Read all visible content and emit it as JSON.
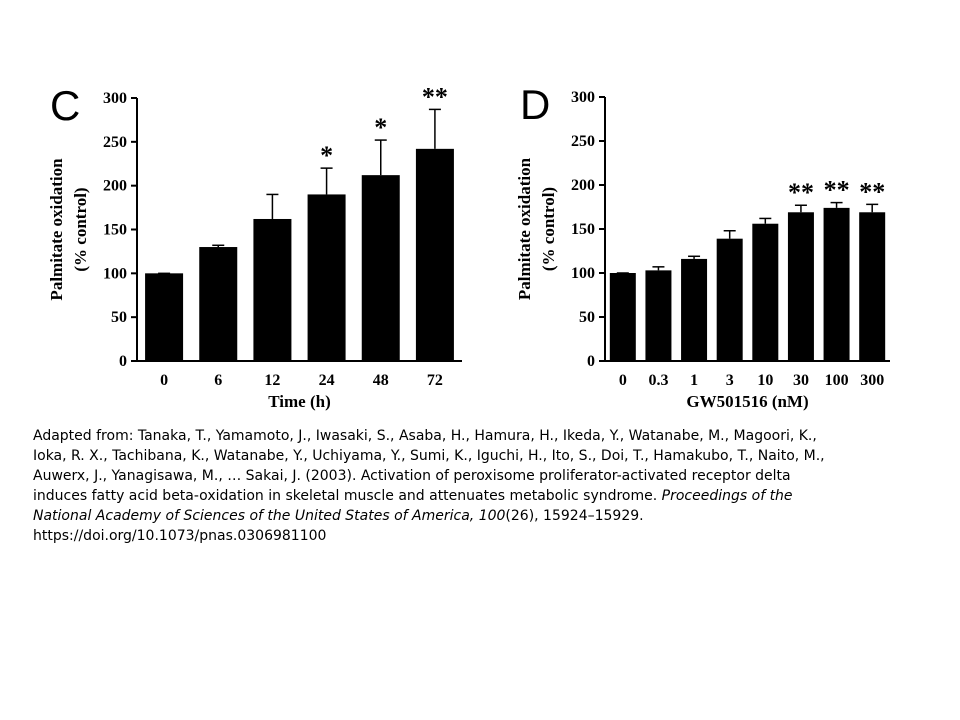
{
  "chart_data": [
    {
      "type": "bar",
      "panel": "C",
      "ylabel": [
        "Palmitate oxidation",
        "(% control)"
      ],
      "xlabel": "Time (h)",
      "categories": [
        "0",
        "6",
        "12",
        "24",
        "48",
        "72"
      ],
      "values": [
        100,
        130,
        162,
        190,
        212,
        242
      ],
      "errors": [
        0,
        2,
        28,
        30,
        40,
        45
      ],
      "significance": [
        null,
        null,
        null,
        "*",
        "*",
        "**"
      ],
      "color": "#000000",
      "ylim": [
        0,
        300
      ],
      "yticks": [
        0,
        50,
        100,
        150,
        200,
        250,
        300
      ]
    },
    {
      "type": "bar",
      "panel": "D",
      "ylabel": [
        "Palmitate oxidation",
        "(% control)"
      ],
      "xlabel": "GW501516 (nM)",
      "categories": [
        "0",
        "0.3",
        "1",
        "3",
        "10",
        "30",
        "100",
        "300"
      ],
      "values": [
        100,
        103,
        116,
        139,
        156,
        169,
        174,
        169
      ],
      "errors": [
        0,
        4,
        3,
        9,
        6,
        8,
        6,
        9
      ],
      "significance": [
        null,
        null,
        null,
        null,
        null,
        "**",
        "**",
        "**"
      ],
      "color": "#000000",
      "ylim": [
        0,
        300
      ],
      "yticks": [
        0,
        50,
        100,
        150,
        200,
        250,
        300
      ]
    }
  ],
  "citation": [
    [
      {
        "text": "Adapted from: Tanaka, T., Yamamoto, J., Iwasaki, S., Asaba, H., Hamura, H., Ikeda, Y., Watanabe, M., Magoori, K.,"
      }
    ],
    [
      {
        "text": "Ioka, R. X., Tachibana, K., Watanabe, Y., Uchiyama, Y., Sumi, K., Iguchi, H., Ito, S., Doi, T., Hamakubo, T., Naito, M.,"
      }
    ],
    [
      {
        "text": "Auwerx, J., Yanagisawa, M., … Sakai, J. (2003). Activation of peroxisome proliferator-activated receptor delta"
      }
    ],
    [
      {
        "text": "induces fatty acid beta-oxidation in skeletal muscle and attenuates metabolic syndrome. "
      },
      {
        "text": "Proceedings of the",
        "italic": true
      }
    ],
    [
      {
        "text": "National Academy of Sciences of the United States of America, 100",
        "italic": true
      },
      {
        "text": "(26), 15924–15929."
      }
    ],
    [
      {
        "text": "https://doi.org/10.1073/pnas.0306981100"
      }
    ]
  ]
}
